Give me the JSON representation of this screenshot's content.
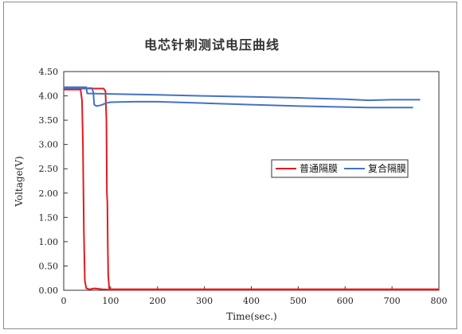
{
  "chart_data": {
    "type": "line",
    "title": "电芯针刺测试电压曲线",
    "xlabel": "Time(sec.)",
    "ylabel": "Voltage(V)",
    "xlim": [
      0,
      800
    ],
    "ylim": [
      0,
      4.5
    ],
    "x_ticks": [
      "0",
      "100",
      "200",
      "300",
      "400",
      "500",
      "600",
      "700",
      "800"
    ],
    "y_ticks": [
      "0.00",
      "0.50",
      "1.00",
      "1.50",
      "2.00",
      "2.50",
      "3.00",
      "3.50",
      "4.00",
      "4.50"
    ],
    "grid": false,
    "legend_position": "right",
    "series": [
      {
        "name": "普通隔膜",
        "color": "#e31a1c",
        "lines": [
          [
            [
              0,
              4.13
            ],
            [
              36,
              4.13
            ],
            [
              39,
              3.9
            ],
            [
              41,
              3.0
            ],
            [
              43,
              1.2
            ],
            [
              45,
              0.2
            ],
            [
              48,
              0.04
            ],
            [
              55,
              0.02
            ],
            [
              65,
              0.04
            ],
            [
              75,
              0.03
            ],
            [
              82,
              0.02
            ],
            [
              100,
              0.01
            ],
            [
              800,
              0.01
            ]
          ],
          [
            [
              0,
              4.15
            ],
            [
              85,
              4.15
            ],
            [
              89,
              4.1
            ],
            [
              91,
              3.5
            ],
            [
              92,
              2.0
            ],
            [
              93,
              1.8
            ],
            [
              94,
              0.9
            ],
            [
              95,
              0.3
            ],
            [
              97,
              0.04
            ],
            [
              100,
              0.02
            ],
            [
              800,
              0.02
            ]
          ]
        ]
      },
      {
        "name": "复合隔膜",
        "color": "#4472c4",
        "lines": [
          [
            [
              0,
              4.18
            ],
            [
              48,
              4.18
            ],
            [
              50,
              4.05
            ],
            [
              100,
              4.04
            ],
            [
              200,
              4.02
            ],
            [
              300,
              4.0
            ],
            [
              400,
              3.98
            ],
            [
              500,
              3.96
            ],
            [
              600,
              3.93
            ],
            [
              650,
              3.91
            ],
            [
              700,
              3.92
            ],
            [
              760,
              3.92
            ]
          ],
          [
            [
              0,
              4.16
            ],
            [
              60,
              4.16
            ],
            [
              63,
              4.08
            ],
            [
              65,
              3.82
            ],
            [
              70,
              3.79
            ],
            [
              80,
              3.81
            ],
            [
              90,
              3.85
            ],
            [
              100,
              3.87
            ],
            [
              150,
              3.88
            ],
            [
              200,
              3.88
            ],
            [
              300,
              3.85
            ],
            [
              400,
              3.82
            ],
            [
              500,
              3.79
            ],
            [
              600,
              3.77
            ],
            [
              650,
              3.76
            ],
            [
              745,
              3.76
            ]
          ]
        ]
      }
    ]
  }
}
